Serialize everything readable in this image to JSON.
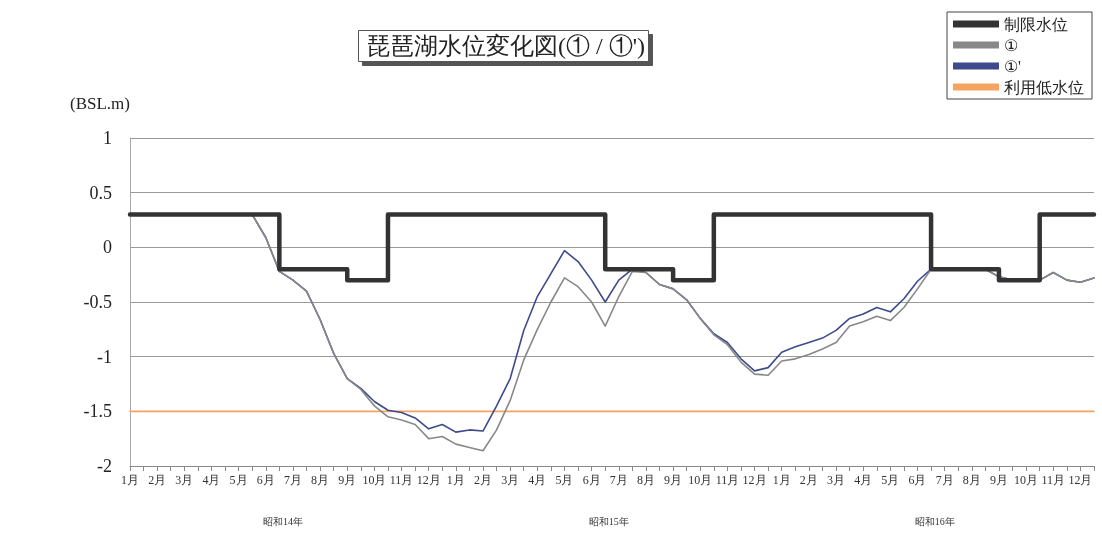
{
  "chart_data": {
    "type": "line",
    "title": "琵琶湖水位変化図(① / ①')",
    "ylabel": "(BSL.m)",
    "annotations": [
      "昭和14年",
      "昭和15年",
      "昭和16年"
    ],
    "categories": [
      "1月",
      null,
      "2月",
      null,
      "3月",
      null,
      "4月",
      null,
      "5月",
      null,
      "6月",
      null,
      "7月",
      null,
      "8月",
      null,
      "9月",
      null,
      "10月",
      null,
      "11月",
      null,
      "12月",
      null,
      "1月",
      null,
      "2月",
      null,
      "3月",
      null,
      "4月",
      null,
      "5月",
      null,
      "6月",
      null,
      "7月",
      null,
      "8月",
      null,
      "9月",
      null,
      "10月",
      null,
      "11月",
      null,
      "12月",
      null,
      "1月",
      null,
      "2月",
      null,
      "3月",
      null,
      "4月",
      null,
      "5月",
      null,
      "6月",
      null,
      "7月",
      null,
      "8月",
      null,
      "9月",
      null,
      "10月",
      null,
      "11月",
      null,
      "12月",
      null
    ],
    "ylim": [
      -2,
      1
    ],
    "yticks": [
      -2,
      -1.5,
      -1,
      -0.5,
      0,
      0.5,
      1
    ],
    "grid": "y",
    "legend": "top right",
    "marker": "none",
    "line_style": "solid",
    "series": [
      {
        "name": "制限水位",
        "type": "step",
        "color": "#333333",
        "values": [
          0.3,
          0.3,
          0.3,
          0.3,
          0.3,
          0.3,
          0.3,
          0.3,
          0.3,
          0.3,
          0.3,
          -0.2,
          -0.2,
          -0.2,
          -0.2,
          -0.2,
          -0.3,
          -0.3,
          -0.3,
          0.3,
          0.3,
          0.3,
          0.3,
          0.3,
          0.3,
          0.3,
          0.3,
          0.3,
          0.3,
          0.3,
          0.3,
          0.3,
          0.3,
          0.3,
          0.3,
          -0.2,
          -0.2,
          -0.2,
          -0.2,
          -0.2,
          -0.3,
          -0.3,
          -0.3,
          0.3,
          0.3,
          0.3,
          0.3,
          0.3,
          0.3,
          0.3,
          0.3,
          0.3,
          0.3,
          0.3,
          0.3,
          0.3,
          0.3,
          0.3,
          0.3,
          -0.2,
          -0.2,
          -0.2,
          -0.2,
          -0.2,
          -0.3,
          -0.3,
          -0.3,
          0.3,
          0.3,
          0.3,
          0.3,
          0.3
        ]
      },
      {
        "name": "①",
        "color": "#888888",
        "values": [
          0.3,
          0.3,
          0.3,
          0.3,
          0.3,
          0.3,
          0.3,
          0.3,
          0.3,
          0.3,
          0.09,
          -0.22,
          -0.3,
          -0.4,
          -0.66,
          -0.97,
          -1.2,
          -1.3,
          -1.45,
          -1.55,
          -1.58,
          -1.62,
          -1.75,
          -1.73,
          -1.8,
          -1.83,
          -1.86,
          -1.67,
          -1.4,
          -1.03,
          -0.75,
          -0.5,
          -0.28,
          -0.36,
          -0.5,
          -0.72,
          -0.45,
          -0.22,
          -0.23,
          -0.34,
          -0.38,
          -0.48,
          -0.65,
          -0.8,
          -0.89,
          -1.05,
          -1.16,
          -1.17,
          -1.04,
          -1.02,
          -0.98,
          -0.93,
          -0.87,
          -0.72,
          -0.68,
          -0.63,
          -0.67,
          -0.55,
          -0.38,
          -0.2,
          -0.2,
          -0.2,
          -0.2,
          -0.2,
          -0.27,
          -0.3,
          -0.3,
          -0.3,
          -0.23,
          -0.3,
          -0.32,
          -0.28
        ]
      },
      {
        "name": "①'",
        "color": "#3d4b8c",
        "values": [
          0.3,
          0.3,
          0.3,
          0.3,
          0.3,
          0.3,
          0.3,
          0.3,
          0.3,
          0.3,
          0.09,
          -0.22,
          -0.3,
          -0.4,
          -0.66,
          -0.97,
          -1.2,
          -1.29,
          -1.41,
          -1.49,
          -1.51,
          -1.56,
          -1.66,
          -1.62,
          -1.69,
          -1.67,
          -1.68,
          -1.45,
          -1.2,
          -0.76,
          -0.45,
          -0.24,
          -0.03,
          -0.13,
          -0.3,
          -0.5,
          -0.3,
          -0.2,
          -0.23,
          -0.34,
          -0.38,
          -0.48,
          -0.65,
          -0.79,
          -0.87,
          -1.02,
          -1.13,
          -1.1,
          -0.96,
          -0.91,
          -0.87,
          -0.83,
          -0.76,
          -0.65,
          -0.61,
          -0.55,
          -0.59,
          -0.47,
          -0.31,
          -0.2,
          -0.2,
          -0.2,
          -0.2,
          -0.2,
          -0.27,
          -0.3,
          -0.3,
          -0.3,
          -0.23,
          -0.3,
          -0.32,
          -0.28
        ]
      },
      {
        "name": "利用低水位",
        "color": "#f4a460",
        "values": [
          -1.5,
          -1.5,
          -1.5,
          -1.5,
          -1.5,
          -1.5,
          -1.5,
          -1.5,
          -1.5,
          -1.5,
          -1.5,
          -1.5,
          -1.5,
          -1.5,
          -1.5,
          -1.5,
          -1.5,
          -1.5,
          -1.5,
          -1.5,
          -1.5,
          -1.5,
          -1.5,
          -1.5,
          -1.5,
          -1.5,
          -1.5,
          -1.5,
          -1.5,
          -1.5,
          -1.5,
          -1.5,
          -1.5,
          -1.5,
          -1.5,
          -1.5,
          -1.5,
          -1.5,
          -1.5,
          -1.5,
          -1.5,
          -1.5,
          -1.5,
          -1.5,
          -1.5,
          -1.5,
          -1.5,
          -1.5,
          -1.5,
          -1.5,
          -1.5,
          -1.5,
          -1.5,
          -1.5,
          -1.5,
          -1.5,
          -1.5,
          -1.5,
          -1.5,
          -1.5,
          -1.5,
          -1.5,
          -1.5,
          -1.5,
          -1.5,
          -1.5,
          -1.5,
          -1.5,
          -1.5,
          -1.5,
          -1.5,
          -1.5
        ]
      }
    ]
  }
}
